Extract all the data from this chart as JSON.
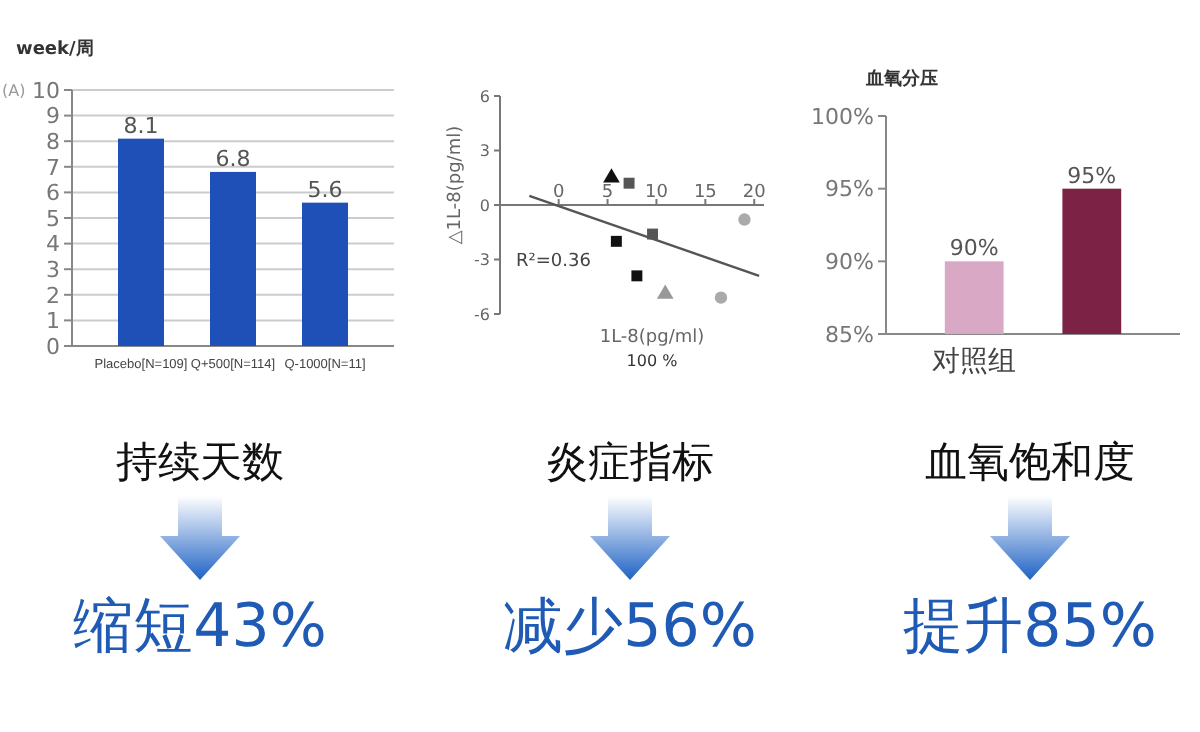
{
  "chart_data": [
    {
      "type": "bar",
      "ylabel": "week/周",
      "categories": [
        "Placebo[N=109]",
        "Q+500[N=114]",
        "Q-1000[N=11]"
      ],
      "values": [
        8.1,
        6.8,
        5.6
      ],
      "color": "#1f50b8",
      "ylim": [
        0,
        10
      ],
      "yticks": [
        0,
        1,
        2,
        3,
        4,
        5,
        6,
        7,
        8,
        9,
        10
      ],
      "grid": "y",
      "data_labels": true,
      "annotations": [
        "(A)",
        "持续天数",
        "缩短43%"
      ]
    },
    {
      "type": "scatter",
      "xlabel": "1L-8(pg/ml)",
      "ylabel": "△1L-8(pg/ml)",
      "xlim": [
        -6,
        21
      ],
      "ylim": [
        -6,
        6
      ],
      "xticks": [
        0,
        5,
        10,
        15,
        20
      ],
      "yticks": [
        -6,
        -3,
        0,
        3,
        6
      ],
      "series": [
        {
          "color": "#111111",
          "marker": "triangle",
          "x": [
            5.4
          ],
          "values": [
            1.5
          ]
        },
        {
          "color": "#555555",
          "marker": "square",
          "x": [
            7.2,
            9.6
          ],
          "values": [
            1.2,
            -1.6
          ]
        },
        {
          "color": "#111111",
          "marker": "square",
          "x": [
            5.9,
            8.0
          ],
          "values": [
            -2.0,
            -3.9
          ]
        },
        {
          "color": "#999999",
          "marker": "triangle",
          "x": [
            10.9
          ],
          "values": [
            -4.9
          ]
        },
        {
          "color": "#aaaaaa",
          "marker": "circle",
          "x": [
            19,
            16.6
          ],
          "values": [
            -0.8,
            -5.1
          ]
        },
        {
          "type": "line",
          "color": "#555555",
          "marker": "none",
          "x": [
            -3,
            20.5
          ],
          "values": [
            0.5,
            -3.9
          ]
        }
      ],
      "annotations": [
        "R²=0.36",
        "100 %",
        "炎症指标",
        "减少56%"
      ]
    },
    {
      "type": "bar",
      "ylabel": "血氧分压",
      "categories": [
        "对照组",
        null
      ],
      "values": [
        90,
        95
      ],
      "colors": [
        "#d9a8c5",
        "#7b2245"
      ],
      "value_labels": [
        "90%",
        "95%"
      ],
      "ylim": [
        85,
        100
      ],
      "yticks": [
        {
          "value": 85,
          "label": "85%"
        },
        {
          "value": 90,
          "label": "90%"
        },
        {
          "value": 95,
          "label": "95%"
        },
        {
          "value": 100,
          "label": "100%"
        }
      ],
      "annotations": [
        "血氧饱和度",
        "提升85%"
      ]
    }
  ]
}
